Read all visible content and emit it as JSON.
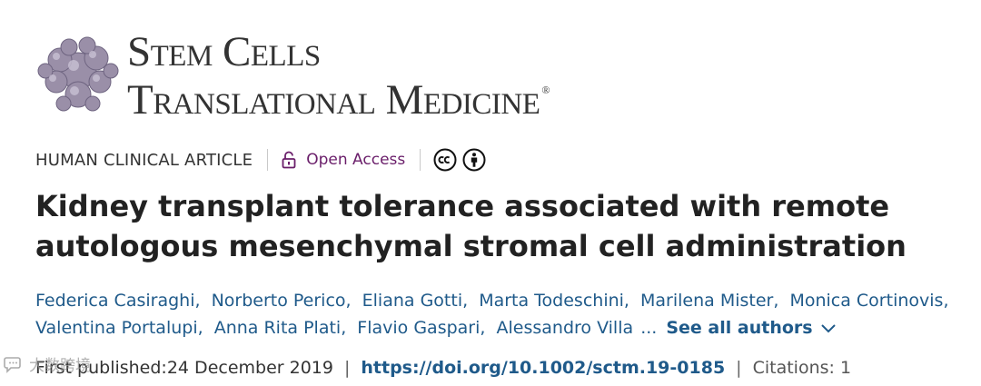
{
  "journal": {
    "line1": "Stem Cells",
    "line2": "Translational Medicine",
    "trademark": "®"
  },
  "meta": {
    "article_type": "HUMAN CLINICAL ARTICLE",
    "open_access": "Open Access"
  },
  "article": {
    "title": "Kidney transplant tolerance associated with remote autologous mesenchymal stromal cell administration"
  },
  "authors": {
    "list": [
      "Federica Casiraghi",
      "Norberto Perico",
      "Eliana Gotti",
      "Marta Todeschini",
      "Marilena Mister",
      "Monica Cortinovis",
      "Valentina Portalupi",
      "Anna Rita Plati",
      "Flavio Gaspari",
      "Alessandro Villa"
    ],
    "ellipsis": "...",
    "see_all": "See all authors"
  },
  "publication": {
    "first_published_label": "First published:",
    "date": "24 December 2019",
    "doi": "https://doi.org/10.1002/sctm.19-0185",
    "citations": "Citations: 1"
  },
  "watermark": {
    "text": "大数跨境"
  },
  "colors": {
    "link": "#1f5a8a",
    "open_access": "#6a1e6a"
  }
}
